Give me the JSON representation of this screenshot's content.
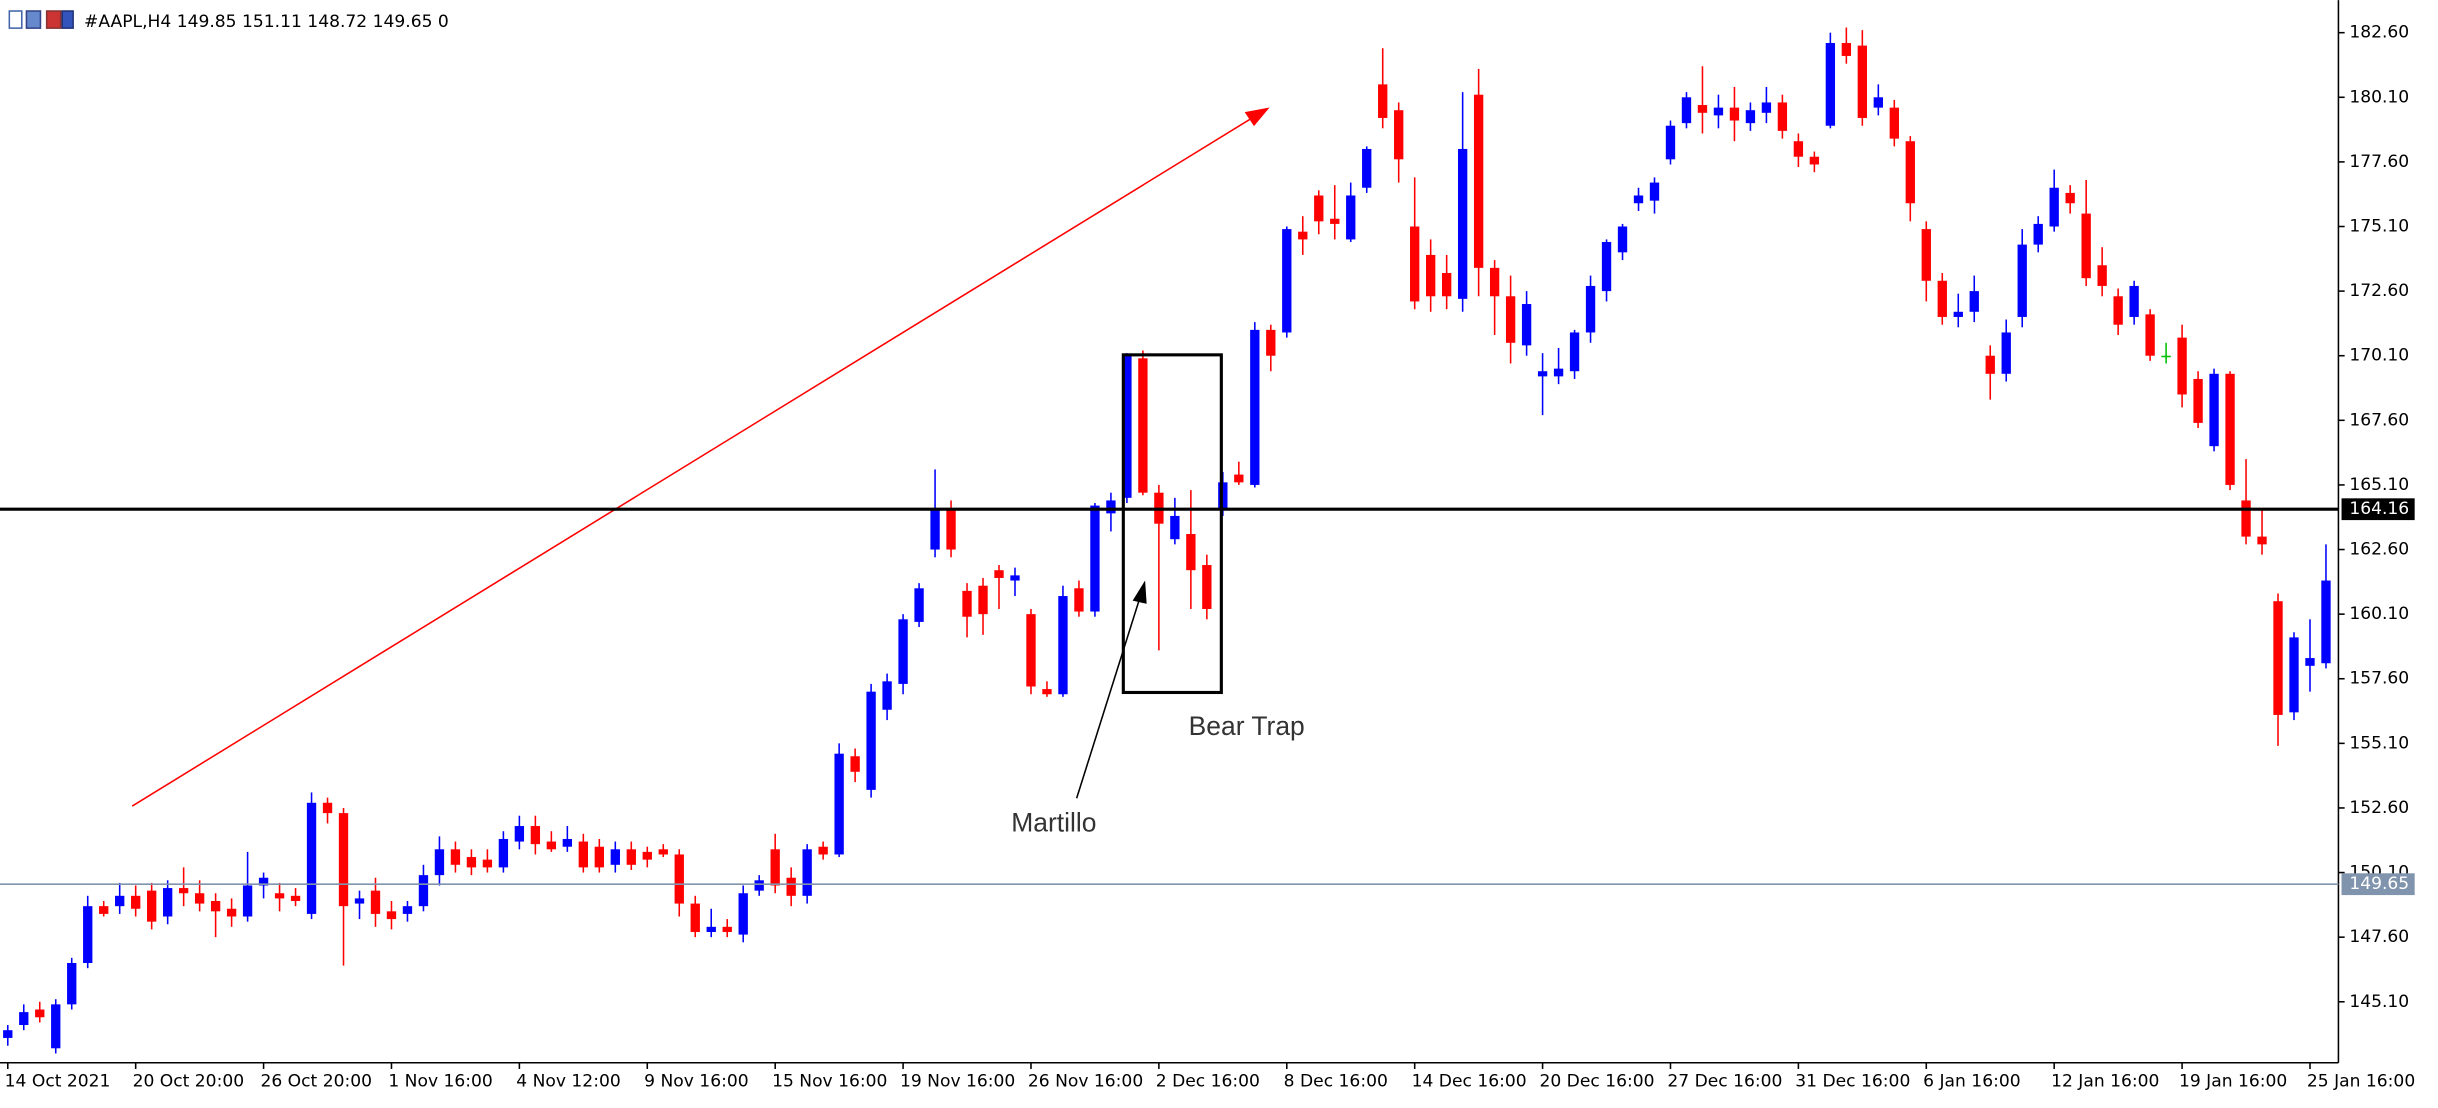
{
  "chart_data": {
    "type": "candlestick",
    "title": "#AAPL,H4  149.85 151.11 148.72 149.65  0",
    "categories": [
      "14 Oct 2021",
      null,
      null,
      null,
      null,
      null,
      null,
      null,
      "20 Oct 20:00",
      null,
      null,
      null,
      null,
      null,
      null,
      null,
      "26 Oct 20:00",
      null,
      null,
      null,
      null,
      null,
      null,
      null,
      "1 Nov 16:00",
      null,
      null,
      null,
      null,
      null,
      null,
      null,
      "4 Nov 12:00",
      null,
      null,
      null,
      null,
      null,
      null,
      null,
      "9 Nov 16:00",
      null,
      null,
      null,
      null,
      null,
      null,
      null,
      "15 Nov 16:00",
      null,
      null,
      null,
      null,
      null,
      null,
      null,
      "19 Nov 16:00",
      null,
      null,
      null,
      null,
      null,
      null,
      null,
      "26 Nov 16:00",
      null,
      null,
      null,
      null,
      null,
      null,
      null,
      "2 Dec 16:00",
      null,
      null,
      null,
      null,
      null,
      null,
      null,
      "8 Dec 16:00",
      null,
      null,
      null,
      null,
      null,
      null,
      null,
      "14 Dec 16:00",
      null,
      null,
      null,
      null,
      null,
      null,
      null,
      "20 Dec 16:00",
      null,
      null,
      null,
      null,
      null,
      null,
      null,
      "27 Dec 16:00",
      null,
      null,
      null,
      null,
      null,
      null,
      null,
      "31 Dec 16:00",
      null,
      null,
      null,
      null,
      null,
      null,
      null,
      "6 Jan 16:00",
      null,
      null,
      null,
      null,
      null,
      null,
      null,
      "12 Jan 16:00",
      null,
      null,
      null,
      null,
      null,
      null,
      null,
      "19 Jan 16:00",
      null,
      null,
      null,
      null,
      null,
      null,
      null,
      "25 Jan 16:00",
      null
    ],
    "open": [
      143.7,
      144.2,
      144.8,
      143.3,
      145.0,
      146.6,
      148.8,
      148.8,
      149.2,
      149.4,
      148.4,
      149.5,
      149.3,
      149.0,
      148.7,
      148.4,
      149.6,
      149.3,
      149.2,
      148.5,
      152.8,
      152.4,
      148.9,
      149.4,
      148.6,
      148.5,
      148.8,
      150.0,
      151.0,
      150.7,
      150.6,
      150.3,
      151.3,
      151.9,
      151.3,
      151.1,
      151.3,
      151.1,
      150.4,
      151.0,
      150.9,
      151.0,
      150.8,
      148.9,
      147.8,
      148.0,
      147.7,
      149.4,
      151.0,
      149.9,
      149.2,
      151.1,
      150.8,
      154.6,
      153.3,
      156.4,
      157.4,
      159.8,
      162.6,
      164.2,
      161.0,
      161.2,
      161.8,
      161.4,
      160.1,
      157.2,
      157.0,
      161.1,
      160.2,
      164.0,
      164.6,
      170.0,
      164.8,
      163.0,
      163.2,
      162.0,
      164.2,
      165.5,
      165.1,
      171.1,
      171.0,
      174.9,
      176.3,
      175.4,
      174.6,
      176.6,
      180.6,
      179.6,
      175.1,
      174.0,
      173.3,
      172.3,
      180.2,
      173.5,
      172.4,
      170.5,
      169.3,
      169.3,
      169.5,
      171.0,
      172.6,
      174.1,
      176.0,
      176.1,
      177.7,
      179.1,
      179.8,
      179.4,
      179.7,
      179.1,
      179.5,
      179.9,
      178.4,
      177.8,
      179.0,
      182.2,
      182.1,
      179.7,
      179.7,
      178.4,
      175.0,
      173.0,
      171.6,
      171.8,
      170.1,
      169.4,
      171.6,
      174.4,
      175.1,
      176.4,
      175.6,
      173.6,
      172.4,
      171.6,
      171.7,
      170.1,
      170.8,
      169.2,
      166.6,
      169.4,
      164.5,
      163.1,
      160.6,
      156.3,
      158.1,
      158.2
    ],
    "high": [
      144.2,
      145.0,
      145.1,
      145.2,
      146.8,
      149.2,
      149.0,
      149.7,
      149.6,
      149.7,
      149.8,
      150.3,
      149.8,
      149.3,
      149.1,
      150.9,
      150.1,
      149.7,
      149.5,
      153.2,
      153.0,
      152.6,
      149.4,
      149.9,
      149.0,
      149.0,
      150.4,
      151.5,
      151.3,
      151.0,
      151.0,
      151.7,
      152.3,
      152.3,
      151.7,
      151.9,
      151.6,
      151.4,
      151.3,
      151.3,
      151.1,
      151.2,
      151.0,
      149.2,
      148.7,
      148.3,
      149.6,
      150.0,
      151.6,
      150.3,
      151.2,
      151.3,
      155.1,
      154.9,
      157.4,
      157.8,
      160.1,
      161.3,
      165.7,
      164.5,
      161.3,
      161.5,
      162.0,
      161.9,
      160.3,
      157.5,
      161.2,
      161.4,
      164.4,
      164.8,
      170.2,
      170.3,
      165.1,
      164.6,
      164.9,
      162.4,
      165.6,
      166.0,
      171.4,
      171.3,
      175.1,
      175.5,
      176.5,
      176.7,
      176.8,
      178.2,
      182.0,
      179.9,
      177.0,
      174.6,
      174.0,
      180.3,
      181.2,
      173.8,
      173.2,
      172.6,
      170.2,
      170.4,
      171.1,
      173.2,
      174.6,
      175.2,
      176.6,
      177.0,
      179.2,
      180.3,
      181.3,
      180.2,
      180.5,
      179.9,
      180.5,
      180.2,
      178.7,
      178.0,
      182.6,
      182.8,
      182.7,
      180.6,
      180.0,
      178.6,
      175.3,
      173.3,
      172.5,
      173.2,
      170.5,
      171.5,
      175.0,
      175.5,
      177.3,
      176.7,
      176.9,
      174.3,
      172.7,
      173.0,
      171.9,
      170.6,
      171.3,
      169.5,
      169.6,
      169.5,
      166.1,
      164.2,
      160.9,
      159.4,
      159.9,
      162.8
    ],
    "low": [
      143.4,
      144.0,
      144.3,
      143.1,
      144.8,
      146.4,
      148.4,
      148.5,
      148.4,
      147.9,
      148.1,
      148.8,
      148.6,
      147.6,
      148.0,
      148.2,
      149.1,
      148.6,
      148.8,
      148.3,
      152.0,
      146.5,
      148.3,
      148.0,
      147.9,
      148.2,
      148.6,
      149.6,
      150.1,
      150.0,
      150.1,
      150.1,
      151.0,
      150.8,
      150.9,
      150.9,
      150.1,
      150.1,
      150.1,
      150.2,
      150.3,
      150.7,
      148.4,
      147.6,
      147.6,
      147.6,
      147.4,
      149.2,
      149.3,
      148.8,
      148.9,
      150.6,
      150.7,
      153.6,
      153.0,
      156.0,
      157.0,
      159.6,
      162.3,
      162.3,
      159.2,
      159.3,
      160.3,
      160.8,
      157.0,
      156.9,
      156.9,
      160.0,
      160.0,
      163.3,
      164.4,
      164.7,
      158.7,
      162.8,
      160.3,
      159.9,
      163.9,
      165.1,
      165.0,
      169.5,
      170.8,
      174.0,
      174.8,
      174.6,
      174.5,
      176.4,
      178.9,
      176.8,
      171.9,
      171.8,
      171.9,
      171.8,
      172.4,
      170.9,
      169.8,
      170.1,
      167.8,
      169.0,
      169.2,
      170.6,
      172.2,
      173.8,
      175.7,
      175.6,
      177.5,
      178.9,
      178.7,
      178.9,
      178.4,
      178.8,
      179.1,
      178.5,
      177.4,
      177.2,
      178.9,
      181.4,
      179.0,
      179.4,
      178.2,
      175.3,
      172.2,
      171.3,
      171.2,
      171.4,
      168.4,
      169.1,
      171.2,
      174.1,
      174.9,
      175.6,
      172.8,
      172.4,
      170.9,
      171.3,
      169.9,
      169.8,
      168.1,
      167.3,
      166.4,
      164.9,
      162.8,
      162.4,
      155.0,
      156.0,
      157.1,
      158.0
    ],
    "close": [
      144.0,
      144.7,
      144.5,
      145.0,
      146.6,
      148.8,
      148.5,
      149.2,
      148.7,
      148.2,
      149.5,
      149.3,
      148.9,
      148.6,
      148.4,
      149.6,
      149.9,
      149.1,
      149.0,
      152.8,
      152.4,
      148.8,
      149.1,
      148.5,
      148.3,
      148.8,
      150.0,
      151.0,
      150.4,
      150.3,
      150.3,
      151.4,
      151.9,
      151.2,
      151.0,
      151.4,
      150.3,
      150.3,
      151.0,
      150.4,
      150.6,
      150.8,
      148.9,
      147.8,
      148.0,
      147.8,
      149.3,
      149.8,
      149.6,
      149.2,
      151.0,
      150.8,
      154.7,
      154.0,
      157.1,
      157.5,
      159.9,
      161.1,
      164.2,
      162.6,
      160.0,
      160.1,
      161.5,
      161.6,
      157.3,
      157.0,
      160.8,
      160.2,
      164.3,
      164.5,
      170.1,
      164.8,
      163.6,
      163.9,
      161.8,
      160.3,
      165.2,
      165.2,
      171.1,
      170.1,
      175.0,
      174.6,
      175.3,
      175.2,
      176.3,
      178.1,
      179.3,
      177.7,
      172.2,
      172.4,
      172.4,
      178.1,
      173.5,
      172.4,
      170.6,
      172.1,
      169.5,
      169.6,
      171.0,
      172.8,
      174.5,
      175.1,
      176.3,
      176.8,
      179.0,
      180.1,
      179.5,
      179.7,
      179.2,
      179.6,
      179.9,
      178.8,
      177.8,
      177.5,
      182.2,
      181.7,
      179.3,
      180.1,
      178.5,
      176.0,
      173.0,
      171.6,
      171.8,
      172.6,
      169.4,
      171.0,
      174.4,
      175.2,
      176.6,
      176.0,
      173.1,
      172.8,
      171.3,
      172.8,
      170.1,
      170.1,
      168.6,
      167.5,
      169.4,
      165.1,
      163.1,
      162.8,
      156.2,
      159.2,
      158.4,
      161.4
    ],
    "up_color": "#0000ff",
    "down_color": "#ff0000",
    "doji_color": "#00c000",
    "ylim": [
      142.74,
      183.86
    ],
    "yticks": [
      {
        "value": 145.1,
        "label": "145.10"
      },
      {
        "value": 147.6,
        "label": "147.60"
      },
      {
        "value": 150.1,
        "label": "150.10"
      },
      {
        "value": 152.6,
        "label": "152.60"
      },
      {
        "value": 155.1,
        "label": "155.10"
      },
      {
        "value": 157.6,
        "label": "157.60"
      },
      {
        "value": 160.1,
        "label": "160.10"
      },
      {
        "value": 162.6,
        "label": "162.60"
      },
      {
        "value": 165.1,
        "label": "165.10"
      },
      {
        "value": 167.6,
        "label": "167.60"
      },
      {
        "value": 170.1,
        "label": "170.10"
      },
      {
        "value": 172.6,
        "label": "172.60"
      },
      {
        "value": 175.1,
        "label": "175.10"
      },
      {
        "value": 177.6,
        "label": "177.60"
      },
      {
        "value": 180.1,
        "label": "180.10"
      },
      {
        "value": 182.6,
        "label": "182.60"
      }
    ],
    "grid": false,
    "levels": [
      {
        "value": 164.16,
        "label": "164.16",
        "color": "#000000"
      },
      {
        "value": 149.65,
        "label": "149.65",
        "color": "#8094ad"
      }
    ],
    "annotations": [
      "Bear Trap",
      "Martillo"
    ]
  }
}
